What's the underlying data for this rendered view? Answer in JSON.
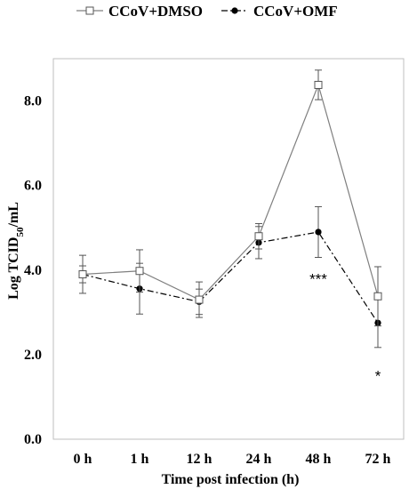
{
  "chart_data": {
    "type": "line",
    "title": "",
    "xlabel": "Time post infection (h)",
    "ylabel_main": "Log TCID",
    "ylabel_sub": "50",
    "ylabel_tail": "/mL",
    "categories": [
      "0 h",
      "1 h",
      "12 h",
      "24 h",
      "48 h",
      "72 h"
    ],
    "ylim": [
      0,
      9
    ],
    "yticks": [
      0,
      2,
      4,
      6,
      8
    ],
    "ytick_labels": [
      "0.0",
      "2.0",
      "4.0",
      "6.0",
      "8.0"
    ],
    "legend_position": "top",
    "grid": false,
    "series": [
      {
        "name": "CCoV+DMSO",
        "style": "solid",
        "marker": "open-square",
        "color": "#7f7f7f",
        "values": [
          3.9,
          3.98,
          3.3,
          4.8,
          8.38,
          3.38
        ],
        "errors": [
          0.45,
          0.5,
          0.42,
          0.3,
          0.35,
          0.7
        ]
      },
      {
        "name": "CCoV+OMF",
        "style": "dash-dot",
        "marker": "filled-circle",
        "color": "#000000",
        "values": [
          3.9,
          3.56,
          3.25,
          4.65,
          4.9,
          2.75
        ],
        "errors": [
          0.2,
          0.6,
          0.3,
          0.38,
          0.6,
          0.58
        ]
      }
    ],
    "annotations": [
      {
        "text": "***",
        "category": 4,
        "y": 3.8
      },
      {
        "text": "*",
        "category": 5,
        "y": 1.5
      }
    ]
  }
}
